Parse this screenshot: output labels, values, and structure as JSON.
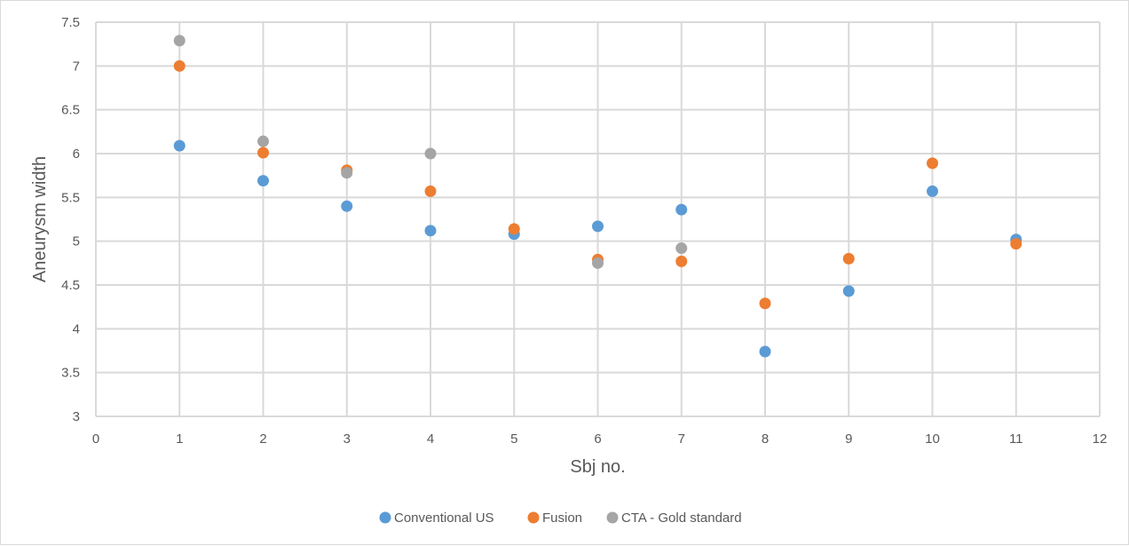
{
  "chart_data": {
    "type": "scatter",
    "title": "",
    "xlabel": "Sbj no.",
    "ylabel": "Aneurysm width",
    "xlim": [
      0,
      12
    ],
    "ylim": [
      3,
      7.5
    ],
    "x_ticks": [
      "0",
      "1",
      "2",
      "3",
      "4",
      "5",
      "6",
      "7",
      "8",
      "9",
      "10",
      "11",
      "12"
    ],
    "y_ticks": [
      "3",
      "3.5",
      "4",
      "4.5",
      "5",
      "5.5",
      "6",
      "6.5",
      "7",
      "7.5"
    ],
    "grid": true,
    "legend_position": "bottom",
    "series": [
      {
        "name": "Conventional US",
        "color": "#5b9bd5",
        "points": [
          [
            1,
            6.09
          ],
          [
            2,
            5.69
          ],
          [
            3,
            5.4
          ],
          [
            4,
            5.12
          ],
          [
            5,
            5.08
          ],
          [
            6,
            5.17
          ],
          [
            7,
            5.36
          ],
          [
            8,
            3.74
          ],
          [
            9,
            4.43
          ],
          [
            10,
            5.57
          ],
          [
            11,
            5.02
          ]
        ]
      },
      {
        "name": "Fusion",
        "color": "#ed7d31",
        "points": [
          [
            1,
            7.0
          ],
          [
            2,
            6.01
          ],
          [
            3,
            5.81
          ],
          [
            4,
            5.57
          ],
          [
            5,
            5.14
          ],
          [
            6,
            4.79
          ],
          [
            7,
            4.77
          ],
          [
            8,
            4.29
          ],
          [
            9,
            4.8
          ],
          [
            10,
            5.89
          ],
          [
            11,
            4.97
          ]
        ]
      },
      {
        "name": "CTA - Gold standard",
        "color": "#a5a5a5",
        "points": [
          [
            1,
            7.29
          ],
          [
            2,
            6.14
          ],
          [
            3,
            5.78
          ],
          [
            4,
            6.0
          ],
          [
            6,
            4.75
          ],
          [
            7,
            4.92
          ]
        ]
      }
    ]
  }
}
